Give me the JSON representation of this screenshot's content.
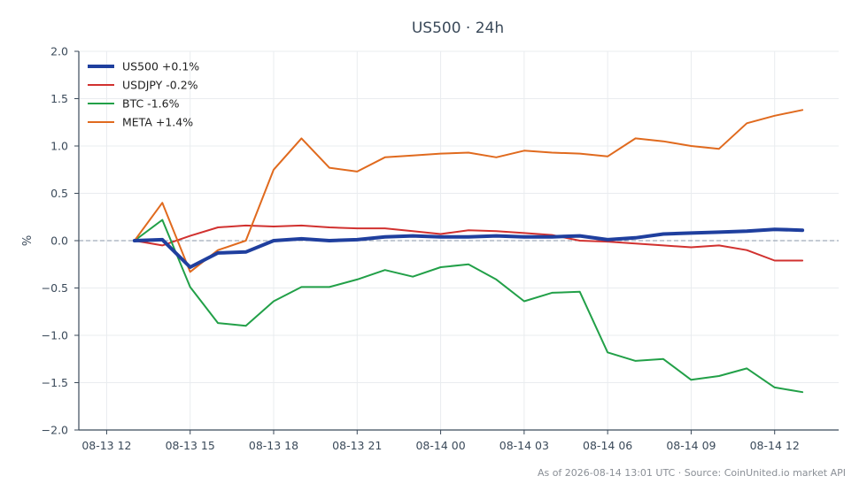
{
  "chart_data": {
    "type": "line",
    "title": "US500 · 24h",
    "ylabel": "%",
    "xlabel": "",
    "ylim": [
      -2.0,
      2.0
    ],
    "y_ticks": [
      "2.0",
      "1.5",
      "1.0",
      "0.5",
      "0.0",
      "−0.5",
      "−1.0",
      "−1.5",
      "−2.0"
    ],
    "y_tick_values": [
      2.0,
      1.5,
      1.0,
      0.5,
      0.0,
      -0.5,
      -1.0,
      -1.5,
      -2.0
    ],
    "x_ticks": [
      "08-13 12",
      "08-13 15",
      "08-13 18",
      "08-13 21",
      "08-14 00",
      "08-14 03",
      "08-14 06",
      "08-14 09",
      "08-14 12"
    ],
    "x_hours": [
      0,
      1,
      2,
      3,
      4,
      5,
      6,
      7,
      8,
      9,
      10,
      11,
      12,
      13,
      14,
      15,
      16,
      17,
      18,
      19,
      20,
      21,
      22,
      23,
      24
    ],
    "x_tick_hours": [
      -1,
      2,
      5,
      8,
      11,
      14,
      17,
      20,
      23
    ],
    "xlim_hours": [
      -2,
      25.3
    ],
    "grid": true,
    "zero_line": true,
    "legend_position": "top-left",
    "series": [
      {
        "name": "US500 +0.1%",
        "color": "#1f3f9e",
        "width": 4,
        "values": [
          0.0,
          0.01,
          -0.28,
          -0.13,
          -0.12,
          0.0,
          0.02,
          0.0,
          0.01,
          0.04,
          0.05,
          0.04,
          0.04,
          0.05,
          0.04,
          0.04,
          0.05,
          0.01,
          0.03,
          0.07,
          0.08,
          0.09,
          0.1,
          0.12,
          0.11
        ]
      },
      {
        "name": "USDJPY -0.2%",
        "color": "#d1312f",
        "width": 2,
        "values": [
          0.0,
          -0.05,
          0.05,
          0.14,
          0.16,
          0.15,
          0.16,
          0.14,
          0.13,
          0.13,
          0.1,
          0.07,
          0.11,
          0.1,
          0.08,
          0.06,
          0.0,
          -0.01,
          -0.03,
          -0.05,
          -0.07,
          -0.05,
          -0.1,
          -0.21,
          -0.21
        ]
      },
      {
        "name": "BTC -1.6%",
        "color": "#22a048",
        "width": 2,
        "values": [
          0.0,
          0.22,
          -0.49,
          -0.87,
          -0.9,
          -0.64,
          -0.49,
          -0.49,
          -0.41,
          -0.31,
          -0.38,
          -0.28,
          -0.25,
          -0.41,
          -0.64,
          -0.55,
          -0.54,
          -1.18,
          -1.27,
          -1.25,
          -1.47,
          -1.43,
          -1.35,
          -1.55,
          -1.6
        ]
      },
      {
        "name": "META +1.4%",
        "color": "#e06a1e",
        "width": 2,
        "values": [
          0.0,
          0.4,
          -0.33,
          -0.1,
          0.0,
          0.75,
          1.08,
          0.77,
          0.73,
          0.88,
          0.9,
          0.92,
          0.93,
          0.88,
          0.95,
          0.93,
          0.92,
          0.89,
          1.08,
          1.05,
          1.0,
          0.97,
          1.24,
          1.32,
          1.38
        ]
      }
    ]
  },
  "footer": "As of 2026-08-14 13:01 UTC · Source: CoinUnited.io market API"
}
